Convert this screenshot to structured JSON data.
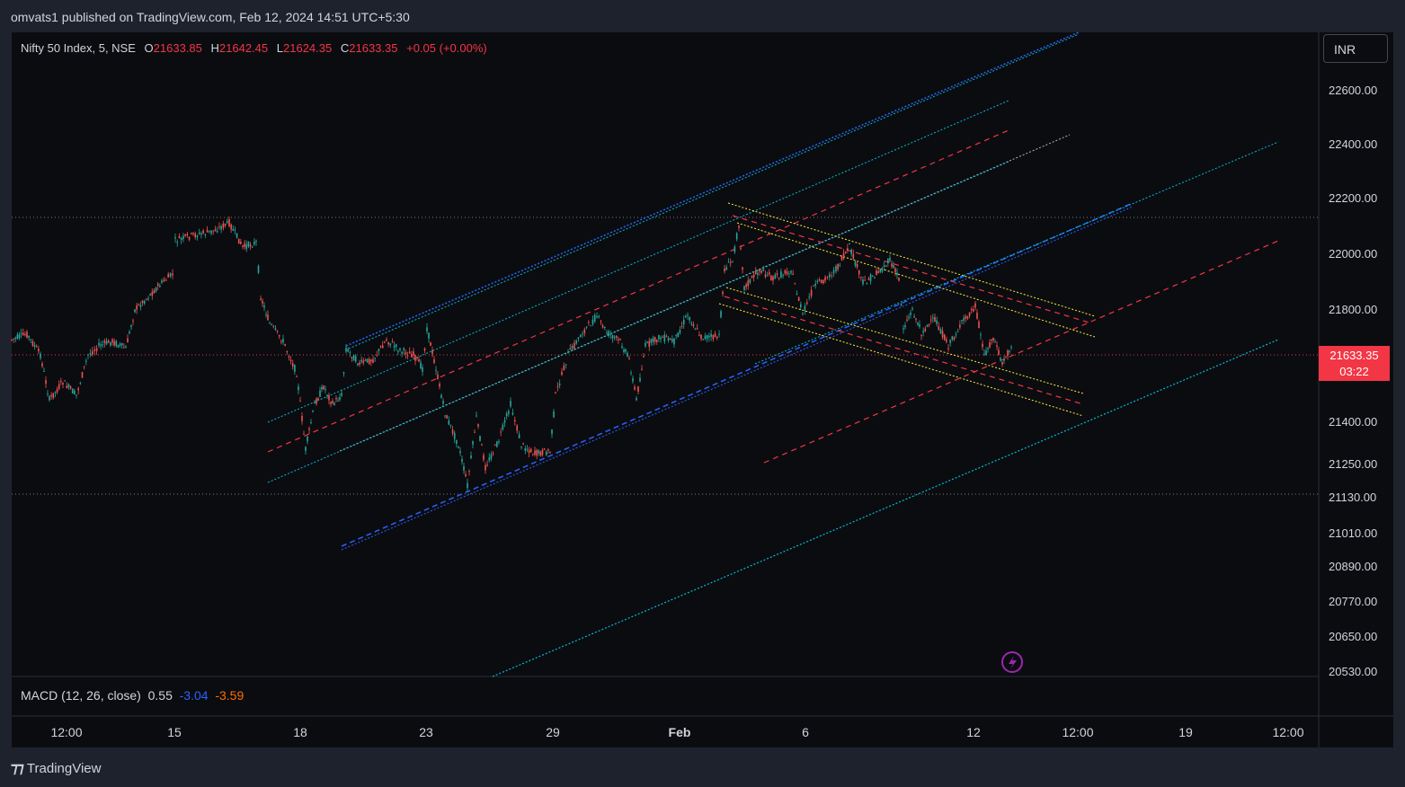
{
  "header": {
    "published": "omvats1 published on TradingView.com, Feb 12, 2024 14:51 UTC+5:30"
  },
  "symbol": {
    "name": "Nifty 50 Index, 5, NSE",
    "open_label": "O",
    "open": "21633.85",
    "high_label": "H",
    "high": "21642.45",
    "low_label": "L",
    "low": "21624.35",
    "close_label": "C",
    "close": "21633.35",
    "change": "+0.05 (+0.00%)"
  },
  "currency_button": "INR",
  "price_tag": {
    "price": "21633.35",
    "countdown": "03:22"
  },
  "macd": {
    "label": "MACD (12, 26, close)",
    "v1": "0.55",
    "v2": "-3.04",
    "v3": "-3.59"
  },
  "footer": {
    "brand": "TradingView"
  },
  "chart_data": {
    "type": "candlestick",
    "y_ticks": [
      "22600.00",
      "22400.00",
      "22200.00",
      "22000.00",
      "21800.00",
      "21400.00",
      "21250.00",
      "21130.00",
      "21010.00",
      "20890.00",
      "20770.00",
      "20650.00",
      "20530.00"
    ],
    "x_ticks": [
      "12:00",
      "15",
      "18",
      "23",
      "29",
      "Feb",
      "6",
      "12",
      "12:00",
      "19",
      "12:00"
    ],
    "last_price": 21633.35,
    "colors": {
      "up": "#26a69a",
      "down": "#ef5350",
      "blue": "#2962ff",
      "cyan": "#00bcd4",
      "red": "#f23645",
      "yellow": "#ffeb3b"
    },
    "price_path": [
      [
        13,
        378
      ],
      [
        30,
        372
      ],
      [
        45,
        395
      ],
      [
        55,
        445
      ],
      [
        70,
        425
      ],
      [
        85,
        440
      ],
      [
        98,
        395
      ],
      [
        110,
        385
      ],
      [
        125,
        380
      ],
      [
        140,
        388
      ],
      [
        150,
        345
      ],
      [
        165,
        330
      ],
      [
        180,
        315
      ],
      [
        192,
        305
      ],
      [
        195,
        268
      ],
      [
        215,
        262
      ],
      [
        235,
        258
      ],
      [
        255,
        248
      ],
      [
        270,
        275
      ],
      [
        285,
        270
      ],
      [
        290,
        330
      ],
      [
        300,
        360
      ],
      [
        315,
        380
      ],
      [
        330,
        415
      ],
      [
        340,
        500
      ],
      [
        350,
        450
      ],
      [
        360,
        430
      ],
      [
        370,
        450
      ],
      [
        380,
        440
      ],
      [
        385,
        388
      ],
      [
        400,
        405
      ],
      [
        415,
        400
      ],
      [
        430,
        378
      ],
      [
        445,
        390
      ],
      [
        460,
        395
      ],
      [
        470,
        410
      ],
      [
        475,
        365
      ],
      [
        485,
        410
      ],
      [
        495,
        460
      ],
      [
        510,
        495
      ],
      [
        520,
        540
      ],
      [
        530,
        465
      ],
      [
        540,
        520
      ],
      [
        555,
        490
      ],
      [
        568,
        450
      ],
      [
        580,
        495
      ],
      [
        595,
        505
      ],
      [
        612,
        502
      ],
      [
        618,
        440
      ],
      [
        632,
        395
      ],
      [
        648,
        370
      ],
      [
        664,
        352
      ],
      [
        675,
        370
      ],
      [
        690,
        380
      ],
      [
        700,
        400
      ],
      [
        708,
        445
      ],
      [
        718,
        385
      ],
      [
        735,
        375
      ],
      [
        750,
        380
      ],
      [
        765,
        350
      ],
      [
        780,
        375
      ],
      [
        800,
        375
      ],
      [
        806,
        300
      ],
      [
        815,
        290
      ],
      [
        822,
        250
      ],
      [
        828,
        320
      ],
      [
        845,
        300
      ],
      [
        860,
        310
      ],
      [
        880,
        300
      ],
      [
        893,
        350
      ],
      [
        905,
        320
      ],
      [
        918,
        310
      ],
      [
        930,
        300
      ],
      [
        945,
        275
      ],
      [
        960,
        315
      ],
      [
        975,
        305
      ],
      [
        990,
        290
      ],
      [
        1000,
        310
      ],
      [
        1005,
        365
      ],
      [
        1015,
        345
      ],
      [
        1025,
        370
      ],
      [
        1040,
        355
      ],
      [
        1055,
        385
      ],
      [
        1070,
        360
      ],
      [
        1085,
        340
      ],
      [
        1095,
        395
      ],
      [
        1105,
        375
      ],
      [
        1115,
        405
      ],
      [
        1125,
        385
      ],
      [
        1128,
        393
      ]
    ]
  }
}
